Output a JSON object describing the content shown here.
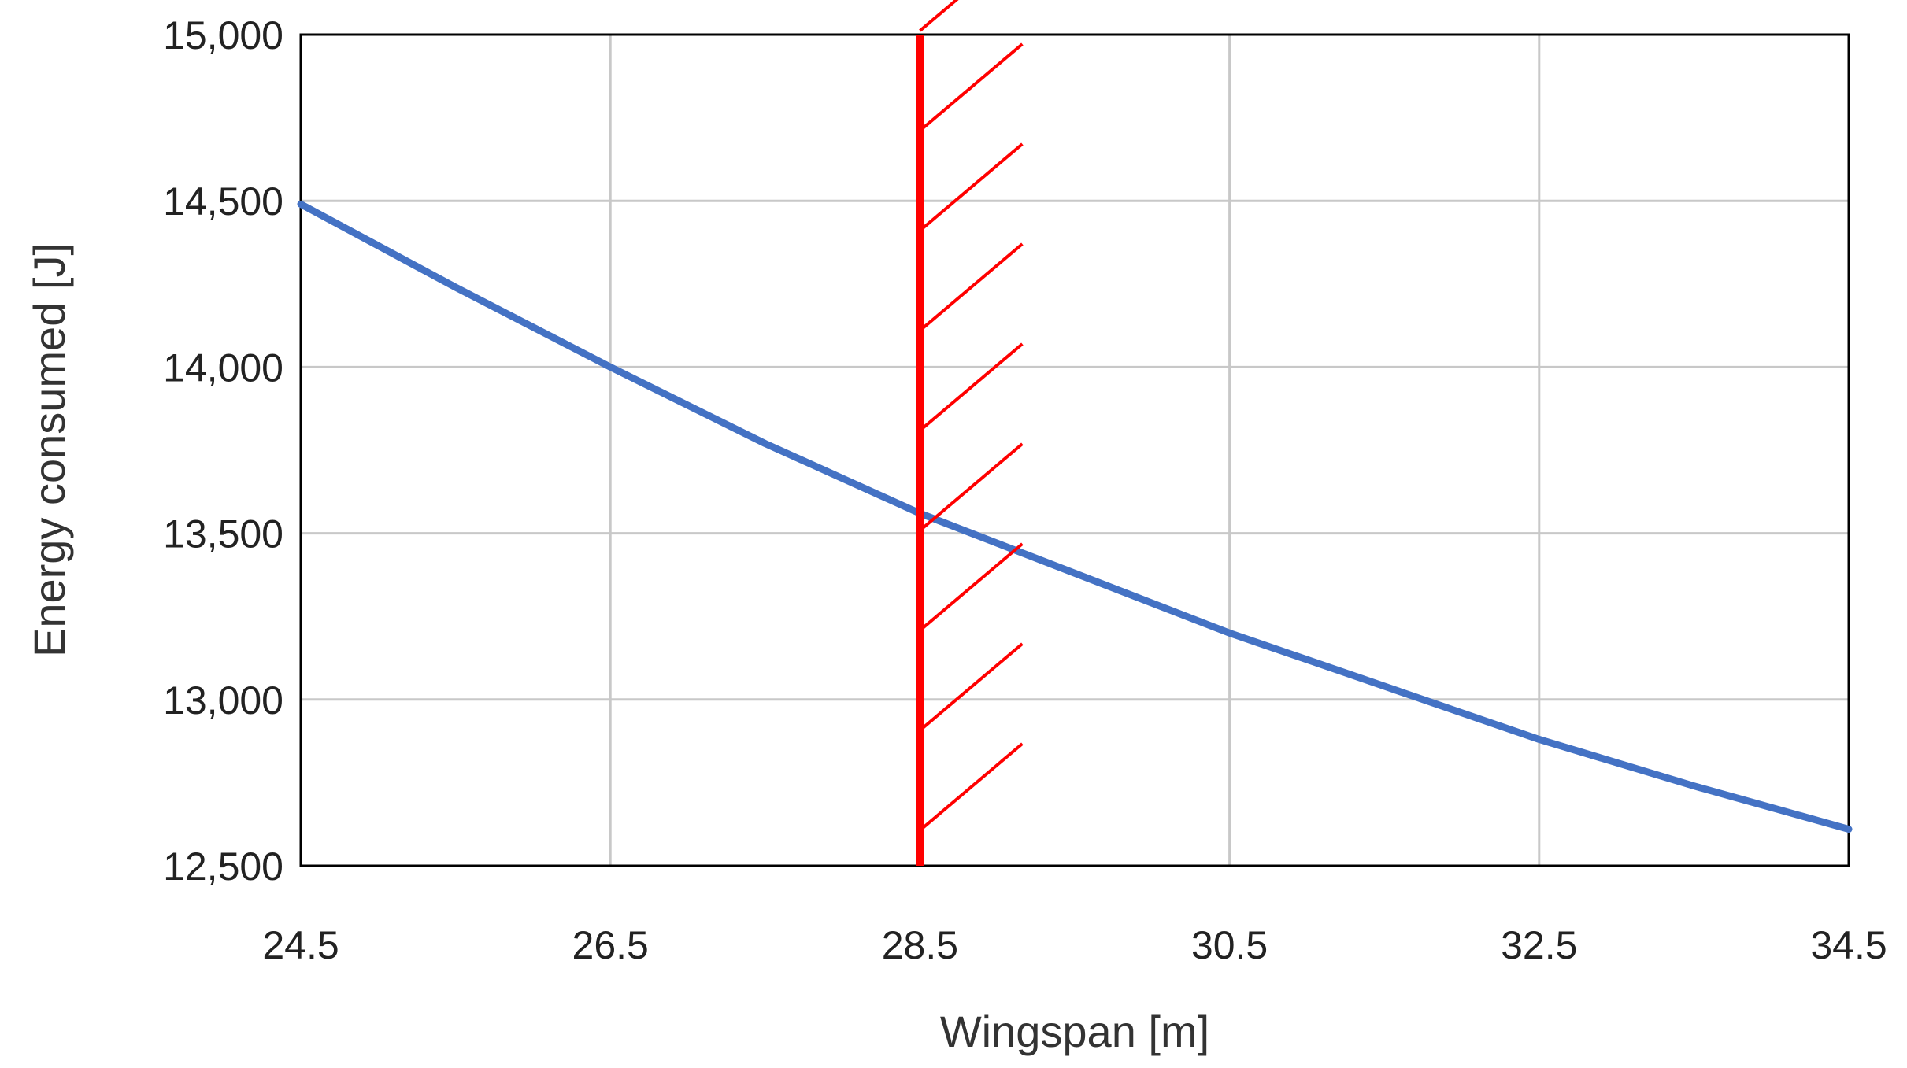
{
  "chart_data": {
    "type": "line",
    "title": "",
    "xlabel": "Wingspan [m]",
    "ylabel": "Energy consumed [J]",
    "xlim": [
      24.5,
      34.5
    ],
    "ylim": [
      12500,
      15000
    ],
    "x_ticks": [
      24.5,
      26.5,
      28.5,
      30.5,
      32.5,
      34.5
    ],
    "x_tick_labels": [
      "24.5",
      "26.5",
      "28.5",
      "30.5",
      "32.5",
      "34.5"
    ],
    "y_ticks": [
      12500,
      13000,
      13500,
      14000,
      14500,
      15000
    ],
    "y_tick_labels": [
      "12,500",
      "13,000",
      "13,500",
      "14,000",
      "14,500",
      "15,000"
    ],
    "grid": true,
    "series": [
      {
        "color": "#4472C4",
        "x": [
          24.5,
          25.5,
          26.5,
          27.5,
          28.5,
          29.5,
          30.5,
          31.5,
          32.5,
          33.5,
          34.5
        ],
        "y": [
          14490,
          14240,
          14000,
          13770,
          13560,
          13380,
          13200,
          13040,
          12880,
          12740,
          12610
        ]
      }
    ],
    "constraint": {
      "x": 28.5,
      "color": "#FF0000",
      "hatch_side": "right"
    }
  }
}
